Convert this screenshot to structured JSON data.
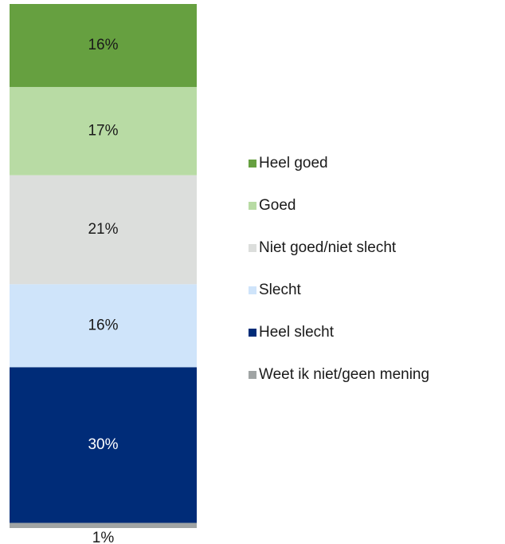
{
  "chart_data": {
    "type": "stacked-bar",
    "categories": [
      null
    ],
    "series": [
      {
        "name": "Heel goed",
        "color": "#66a040",
        "values": [
          16
        ],
        "value_labels": [
          "16%"
        ]
      },
      {
        "name": "Goed",
        "color": "#b8dba4",
        "values": [
          17
        ],
        "value_labels": [
          "17%"
        ]
      },
      {
        "name": "Niet goed/niet slecht",
        "color": "#dcdedc",
        "values": [
          21
        ],
        "value_labels": [
          "21%"
        ]
      },
      {
        "name": "Slecht",
        "color": "#cfe4fa",
        "values": [
          16
        ],
        "value_labels": [
          "16%"
        ]
      },
      {
        "name": "Heel slecht",
        "color": "#002c78",
        "values": [
          30
        ],
        "value_labels": [
          "30%"
        ]
      },
      {
        "name": "Weet ik niet/geen mening",
        "color": "#a0a4a4",
        "values": [
          1
        ],
        "value_labels": [
          "1%"
        ]
      }
    ],
    "legend": "right"
  }
}
